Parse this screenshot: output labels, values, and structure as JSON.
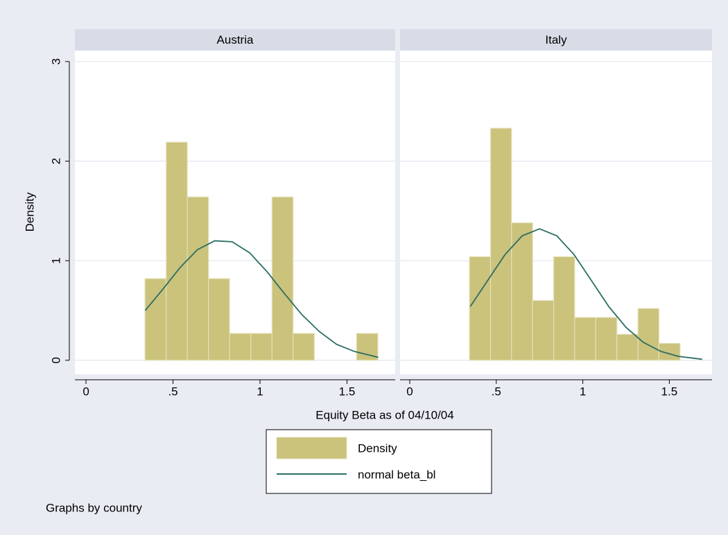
{
  "chart_data": [
    {
      "type": "histogram",
      "title": "Austria",
      "bins": [
        0.339,
        0.461,
        0.582,
        0.704,
        0.825,
        0.947,
        1.069,
        1.19,
        1.312,
        1.433,
        1.555,
        1.677
      ],
      "series": [
        {
          "name": "Density",
          "color": "#cbc27c",
          "values": [
            0.82,
            2.19,
            1.64,
            0.82,
            0.27,
            0.27,
            1.64,
            0.27,
            0,
            0,
            0.27
          ]
        },
        {
          "name": "normal beta_bl",
          "color": "#2a6e63",
          "x": [
            0.34,
            0.44,
            0.54,
            0.64,
            0.74,
            0.84,
            0.94,
            1.04,
            1.14,
            1.24,
            1.34,
            1.44,
            1.54,
            1.68
          ],
          "values": [
            0.5,
            0.71,
            0.93,
            1.11,
            1.2,
            1.19,
            1.08,
            0.89,
            0.67,
            0.46,
            0.29,
            0.16,
            0.09,
            0.03
          ]
        }
      ],
      "xlim": [
        -0.064,
        1.777
      ],
      "ylim": [
        -0.14,
        3.11
      ],
      "xticks": [
        0,
        {
          "value": 0.5,
          "label": ".5"
        },
        1,
        1.5
      ],
      "yticks": [
        0,
        1,
        2,
        3
      ],
      "grid": true
    },
    {
      "type": "histogram",
      "title": "Italy",
      "bins": [
        0.345,
        0.467,
        0.588,
        0.71,
        0.832,
        0.953,
        1.075,
        1.197,
        1.319,
        1.44,
        1.562
      ],
      "series": [
        {
          "color": "#cbc27c",
          "values": [
            1.04,
            2.33,
            1.38,
            0.6,
            1.04,
            0.43,
            0.43,
            0.26,
            0.52,
            0.17
          ]
        },
        {
          "color": "#2a6e63",
          "x": [
            0.35,
            0.45,
            0.55,
            0.65,
            0.75,
            0.85,
            0.95,
            1.05,
            1.15,
            1.25,
            1.35,
            1.45,
            1.55,
            1.69
          ],
          "values": [
            0.54,
            0.8,
            1.06,
            1.25,
            1.32,
            1.25,
            1.06,
            0.8,
            0.54,
            0.33,
            0.18,
            0.09,
            0.04,
            0.01
          ]
        }
      ],
      "xlim": [
        -0.056,
        1.747
      ],
      "ylim": [
        -0.14,
        3.11
      ],
      "xticks": [
        0,
        {
          "value": 0.5,
          "label": ".5"
        },
        1,
        1.5
      ],
      "yticks": [
        0,
        1,
        2,
        3
      ],
      "grid": true
    }
  ],
  "x_label": "Equity Beta as of 04/10/04",
  "y_label": "Density",
  "note": "Graphs by country",
  "legend": "bottom"
}
